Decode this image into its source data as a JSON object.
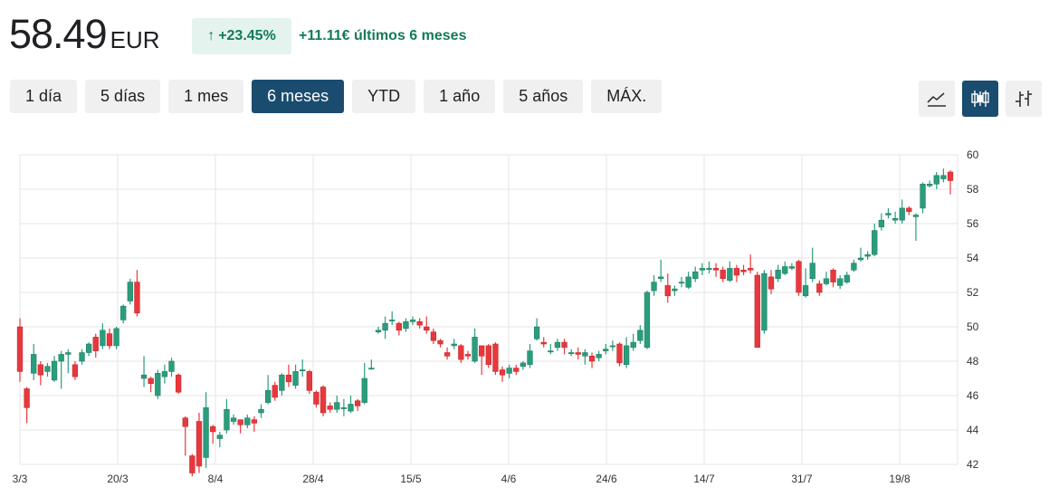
{
  "header": {
    "price": "58.49",
    "currency": "EUR",
    "change_pct": "+23.45%",
    "change_arrow_icon": "arrow-up-icon",
    "change_abs": "+11.11€ últimos 6 meses",
    "positive_color": "#137a5a"
  },
  "tabs": [
    {
      "label": "1 día",
      "active": false
    },
    {
      "label": "5 días",
      "active": false
    },
    {
      "label": "1 mes",
      "active": false
    },
    {
      "label": "6 meses",
      "active": true
    },
    {
      "label": "YTD",
      "active": false
    },
    {
      "label": "1 año",
      "active": false
    },
    {
      "label": "5 años",
      "active": false
    },
    {
      "label": "MÁX.",
      "active": false
    }
  ],
  "tools": [
    {
      "icon": "line-chart-icon",
      "active": false
    },
    {
      "icon": "candlestick-icon",
      "active": true
    },
    {
      "icon": "ohlc-bar-icon",
      "active": false
    }
  ],
  "chart_data": {
    "type": "candlestick",
    "x_tick_labels": [
      "3/3",
      "20/3",
      "8/4",
      "28/4",
      "15/5",
      "4/6",
      "24/6",
      "14/7",
      "31/7",
      "19/8"
    ],
    "y_ticks": [
      42,
      44,
      46,
      48,
      50,
      52,
      54,
      56,
      58,
      60
    ],
    "ylim": [
      42,
      60
    ],
    "grid": true,
    "y_axis_position": "right",
    "up_color": "#2a9d7c",
    "down_color": "#e8383d",
    "candles": [
      [
        50.0,
        47.4,
        50.5,
        46.8
      ],
      [
        46.4,
        45.3,
        46.5,
        44.4
      ],
      [
        47.3,
        48.4,
        49.0,
        46.9
      ],
      [
        47.8,
        47.2,
        48.0,
        46.6
      ],
      [
        47.4,
        47.7,
        47.9,
        47.1
      ],
      [
        46.9,
        48.0,
        48.3,
        46.8
      ],
      [
        48.0,
        48.4,
        48.6,
        46.4
      ],
      [
        48.4,
        48.5,
        48.7,
        47.3
      ],
      [
        47.8,
        47.1,
        48.0,
        46.9
      ],
      [
        48.0,
        48.5,
        48.7,
        47.8
      ],
      [
        48.5,
        49.0,
        49.1,
        48.3
      ],
      [
        49.4,
        48.6,
        49.6,
        48.2
      ],
      [
        48.9,
        49.8,
        50.2,
        48.7
      ],
      [
        49.6,
        48.9,
        49.9,
        48.7
      ],
      [
        48.9,
        49.9,
        50.0,
        48.7
      ],
      [
        50.4,
        51.2,
        51.3,
        50.2
      ],
      [
        51.5,
        52.6,
        52.8,
        51.3
      ],
      [
        52.6,
        50.8,
        53.3,
        50.6
      ],
      [
        47.0,
        47.2,
        48.3,
        46.5
      ],
      [
        47.0,
        46.7,
        47.1,
        46.2
      ],
      [
        46.0,
        47.3,
        47.5,
        45.8
      ],
      [
        47.1,
        47.4,
        47.8,
        46.7
      ],
      [
        47.4,
        48.0,
        48.2,
        47.1
      ],
      [
        47.2,
        46.2,
        47.3,
        46.1
      ],
      [
        44.7,
        44.2,
        44.8,
        42.5
      ],
      [
        42.5,
        41.5,
        42.6,
        41.3
      ],
      [
        44.5,
        41.9,
        45.0,
        41.5
      ],
      [
        42.4,
        45.3,
        46.2,
        41.8
      ],
      [
        44.2,
        43.9,
        44.3,
        43.2
      ],
      [
        43.5,
        43.7,
        43.9,
        43.0
      ],
      [
        44.0,
        45.2,
        45.8,
        43.8
      ],
      [
        44.5,
        44.7,
        44.9,
        44.3
      ],
      [
        44.6,
        44.3,
        44.6,
        43.8
      ],
      [
        44.3,
        44.7,
        44.9,
        44.1
      ],
      [
        44.6,
        44.4,
        44.8,
        43.9
      ],
      [
        45.0,
        45.2,
        45.5,
        44.7
      ],
      [
        45.6,
        46.3,
        47.2,
        45.5
      ],
      [
        46.6,
        45.9,
        46.8,
        45.7
      ],
      [
        46.3,
        47.2,
        47.3,
        46.0
      ],
      [
        47.2,
        46.8,
        47.8,
        46.5
      ],
      [
        46.6,
        47.4,
        47.8,
        46.4
      ],
      [
        47.5,
        47.5,
        48.1,
        47.1
      ],
      [
        47.4,
        46.3,
        47.5,
        46.1
      ],
      [
        46.2,
        45.5,
        46.3,
        45.3
      ],
      [
        46.5,
        45.0,
        46.6,
        44.8
      ],
      [
        45.4,
        45.2,
        45.6,
        45.0
      ],
      [
        45.2,
        45.6,
        46.0,
        45.0
      ],
      [
        45.3,
        45.3,
        45.8,
        44.8
      ],
      [
        45.1,
        45.5,
        46.0,
        45.0
      ],
      [
        45.7,
        45.4,
        45.8,
        45.1
      ],
      [
        45.6,
        47.0,
        47.9,
        45.5
      ],
      [
        47.6,
        47.6,
        48.1,
        47.5
      ],
      [
        49.7,
        49.8,
        50.0,
        49.6
      ],
      [
        49.8,
        50.2,
        50.6,
        49.3
      ],
      [
        50.4,
        50.4,
        50.9,
        50.1
      ],
      [
        50.2,
        49.8,
        50.3,
        49.5
      ],
      [
        49.9,
        50.3,
        50.5,
        49.7
      ],
      [
        50.3,
        50.4,
        50.6,
        50.1
      ],
      [
        50.3,
        50.1,
        50.5,
        49.9
      ],
      [
        50.0,
        49.8,
        50.6,
        49.6
      ],
      [
        49.7,
        49.2,
        49.9,
        49.0
      ],
      [
        49.2,
        49.0,
        49.3,
        48.8
      ],
      [
        48.5,
        48.3,
        48.8,
        48.1
      ],
      [
        48.9,
        49.0,
        49.3,
        48.7
      ],
      [
        48.9,
        48.1,
        49.0,
        47.9
      ],
      [
        48.4,
        48.3,
        48.6,
        48.1
      ],
      [
        48.0,
        49.4,
        49.9,
        47.9
      ],
      [
        48.9,
        48.3,
        48.9,
        47.2
      ],
      [
        48.9,
        47.8,
        49.0,
        47.6
      ],
      [
        49.0,
        47.4,
        49.1,
        47.2
      ],
      [
        47.5,
        47.2,
        47.7,
        46.8
      ],
      [
        47.3,
        47.6,
        47.8,
        47.0
      ],
      [
        47.6,
        47.4,
        47.8,
        47.2
      ],
      [
        47.7,
        47.9,
        48.0,
        47.5
      ],
      [
        47.8,
        48.6,
        49.0,
        47.6
      ],
      [
        49.3,
        50.0,
        50.5,
        49.2
      ],
      [
        49.1,
        49.0,
        49.4,
        48.8
      ],
      [
        48.6,
        48.6,
        49.0,
        48.4
      ],
      [
        48.8,
        49.1,
        49.3,
        48.6
      ],
      [
        49.1,
        48.8,
        49.3,
        48.4
      ],
      [
        48.5,
        48.5,
        48.7,
        48.3
      ],
      [
        48.5,
        48.4,
        48.8,
        48.1
      ],
      [
        48.3,
        48.5,
        48.7,
        47.8
      ],
      [
        48.3,
        48.0,
        48.5,
        47.6
      ],
      [
        48.2,
        48.4,
        48.6,
        48.0
      ],
      [
        48.6,
        48.7,
        49.0,
        48.4
      ],
      [
        48.9,
        48.9,
        49.2,
        48.6
      ],
      [
        49.0,
        47.9,
        49.1,
        47.7
      ],
      [
        47.8,
        48.9,
        49.4,
        47.6
      ],
      [
        48.8,
        49.1,
        49.6,
        48.6
      ],
      [
        49.2,
        49.8,
        50.1,
        49.0
      ],
      [
        48.8,
        52.0,
        52.1,
        48.7
      ],
      [
        52.1,
        52.6,
        53.0,
        51.8
      ],
      [
        52.8,
        52.9,
        53.9,
        52.6
      ],
      [
        52.4,
        51.8,
        53.1,
        51.4
      ],
      [
        52.1,
        52.2,
        52.4,
        51.8
      ],
      [
        52.6,
        52.6,
        52.9,
        52.3
      ],
      [
        52.3,
        52.9,
        53.2,
        52.2
      ],
      [
        52.8,
        53.2,
        53.5,
        52.6
      ],
      [
        53.3,
        53.4,
        53.7,
        53.0
      ],
      [
        53.4,
        53.4,
        53.8,
        53.1
      ],
      [
        53.4,
        53.3,
        53.7,
        52.9
      ],
      [
        53.3,
        52.8,
        53.5,
        52.6
      ],
      [
        52.7,
        53.4,
        53.8,
        52.6
      ],
      [
        53.4,
        53.0,
        53.6,
        52.6
      ],
      [
        53.3,
        53.2,
        53.6,
        53.0
      ],
      [
        53.4,
        53.3,
        54.2,
        53.1
      ],
      [
        53.0,
        48.8,
        53.2,
        48.8
      ],
      [
        49.8,
        53.1,
        53.3,
        49.6
      ],
      [
        52.9,
        52.2,
        53.3,
        51.9
      ],
      [
        52.8,
        53.3,
        53.6,
        52.6
      ],
      [
        53.1,
        53.5,
        53.8,
        53.0
      ],
      [
        53.4,
        53.5,
        53.7,
        53.3
      ],
      [
        53.8,
        52.0,
        53.9,
        51.8
      ],
      [
        51.8,
        52.4,
        53.4,
        51.7
      ],
      [
        52.8,
        53.7,
        54.6,
        52.6
      ],
      [
        52.5,
        52.0,
        52.7,
        51.8
      ],
      [
        52.5,
        52.8,
        53.2,
        52.4
      ],
      [
        53.3,
        52.6,
        53.4,
        52.3
      ],
      [
        52.4,
        52.8,
        53.0,
        52.2
      ],
      [
        52.6,
        53.0,
        53.2,
        52.5
      ],
      [
        53.3,
        53.7,
        53.9,
        53.2
      ],
      [
        53.9,
        54.0,
        54.6,
        53.8
      ],
      [
        54.1,
        54.2,
        54.4,
        53.9
      ],
      [
        54.2,
        55.6,
        56.0,
        54.1
      ],
      [
        55.8,
        56.2,
        56.6,
        55.6
      ],
      [
        56.5,
        56.6,
        56.9,
        56.3
      ],
      [
        56.2,
        56.3,
        56.7,
        56.0
      ],
      [
        56.2,
        56.9,
        57.4,
        56.0
      ],
      [
        56.9,
        56.7,
        57.0,
        56.5
      ],
      [
        56.4,
        56.5,
        56.6,
        55.0
      ],
      [
        56.9,
        58.3,
        58.4,
        56.6
      ],
      [
        58.2,
        58.3,
        58.5,
        58.1
      ],
      [
        58.3,
        58.8,
        59.0,
        58.0
      ],
      [
        58.6,
        58.8,
        59.2,
        58.4
      ],
      [
        59.0,
        58.5,
        59.1,
        57.7
      ]
    ]
  }
}
